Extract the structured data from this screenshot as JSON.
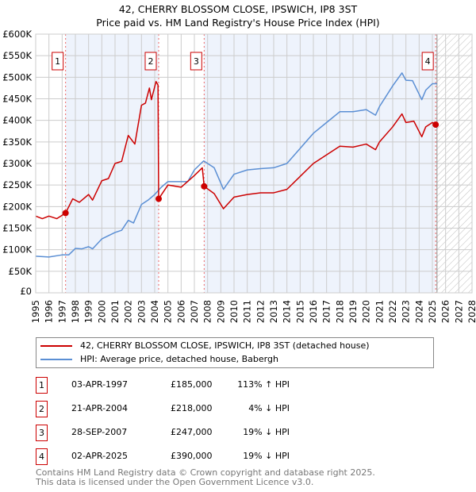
{
  "chart_data": {
    "type": "line",
    "title": "42, CHERRY BLOSSOM CLOSE, IPSWICH, IP8 3ST",
    "subtitle": "Price paid vs. HM Land Registry's House Price Index (HPI)",
    "xlim": [
      1995,
      2028
    ],
    "ylim": [
      0,
      600000
    ],
    "x_ticks": [
      "1995",
      "1996",
      "1997",
      "1998",
      "1999",
      "2000",
      "2001",
      "2002",
      "2003",
      "2004",
      "2005",
      "2006",
      "2007",
      "2008",
      "2009",
      "2010",
      "2011",
      "2012",
      "2013",
      "2014",
      "2015",
      "2016",
      "2017",
      "2018",
      "2019",
      "2020",
      "2021",
      "2022",
      "2023",
      "2024",
      "2025",
      "2026",
      "2027",
      "2028"
    ],
    "y_ticks": [
      "£0",
      "£50K",
      "£100K",
      "£150K",
      "£200K",
      "£250K",
      "£300K",
      "£350K",
      "£400K",
      "£450K",
      "£500K",
      "£550K",
      "£600K"
    ],
    "grid": true,
    "series": [
      {
        "name": "42, CHERRY BLOSSOM CLOSE, IPSWICH, IP8 3ST (detached house)",
        "color": "#cc0000",
        "points": [
          [
            1995,
            178000
          ],
          [
            1995.5,
            172000
          ],
          [
            1996,
            178000
          ],
          [
            1996.6,
            172000
          ],
          [
            1997.26,
            185000
          ],
          [
            1997.8,
            218000
          ],
          [
            1998.3,
            210000
          ],
          [
            1999,
            228000
          ],
          [
            1999.3,
            215000
          ],
          [
            2000,
            260000
          ],
          [
            2000.5,
            265000
          ],
          [
            2001,
            300000
          ],
          [
            2001.5,
            305000
          ],
          [
            2002,
            365000
          ],
          [
            2002.5,
            345000
          ],
          [
            2003,
            435000
          ],
          [
            2003.3,
            440000
          ],
          [
            2003.6,
            475000
          ],
          [
            2003.75,
            448000
          ],
          [
            2004.1,
            490000
          ],
          [
            2004.25,
            482000
          ],
          [
            2004.3,
            218000
          ],
          [
            2005,
            250000
          ],
          [
            2006,
            245000
          ],
          [
            2007,
            272000
          ],
          [
            2007.6,
            290000
          ],
          [
            2007.74,
            247000
          ],
          [
            2008.5,
            230000
          ],
          [
            2009.2,
            195000
          ],
          [
            2010,
            222000
          ],
          [
            2011,
            228000
          ],
          [
            2012,
            232000
          ],
          [
            2013,
            232000
          ],
          [
            2014,
            240000
          ],
          [
            2015,
            270000
          ],
          [
            2016,
            300000
          ],
          [
            2017,
            320000
          ],
          [
            2018,
            340000
          ],
          [
            2019,
            338000
          ],
          [
            2020,
            345000
          ],
          [
            2020.7,
            332000
          ],
          [
            2021,
            350000
          ],
          [
            2022,
            385000
          ],
          [
            2022.7,
            415000
          ],
          [
            2023,
            395000
          ],
          [
            2023.6,
            398000
          ],
          [
            2024.2,
            362000
          ],
          [
            2024.5,
            385000
          ],
          [
            2025,
            395000
          ],
          [
            2025.25,
            390000
          ],
          [
            2025.35,
            390000
          ]
        ]
      },
      {
        "name": "HPI: Average price, detached house, Babergh",
        "color": "#5b8fd4",
        "points": [
          [
            1995,
            85000
          ],
          [
            1996,
            83000
          ],
          [
            1997,
            88000
          ],
          [
            1997.5,
            88000
          ],
          [
            1998,
            103000
          ],
          [
            1998.5,
            102000
          ],
          [
            1999,
            107000
          ],
          [
            1999.3,
            102000
          ],
          [
            2000,
            125000
          ],
          [
            2001,
            140000
          ],
          [
            2001.5,
            145000
          ],
          [
            2002,
            168000
          ],
          [
            2002.4,
            162000
          ],
          [
            2003,
            205000
          ],
          [
            2003.5,
            215000
          ],
          [
            2004,
            228000
          ],
          [
            2004.5,
            245000
          ],
          [
            2005,
            258000
          ],
          [
            2006,
            258000
          ],
          [
            2006.5,
            258000
          ],
          [
            2007,
            285000
          ],
          [
            2007.7,
            306000
          ],
          [
            2008.5,
            290000
          ],
          [
            2009.2,
            240000
          ],
          [
            2010,
            275000
          ],
          [
            2011,
            285000
          ],
          [
            2012,
            288000
          ],
          [
            2013,
            290000
          ],
          [
            2014,
            300000
          ],
          [
            2015,
            335000
          ],
          [
            2016,
            370000
          ],
          [
            2017,
            395000
          ],
          [
            2018,
            420000
          ],
          [
            2019,
            420000
          ],
          [
            2020,
            425000
          ],
          [
            2020.7,
            412000
          ],
          [
            2021,
            432000
          ],
          [
            2022,
            480000
          ],
          [
            2022.7,
            510000
          ],
          [
            2023,
            493000
          ],
          [
            2023.5,
            492000
          ],
          [
            2024.2,
            448000
          ],
          [
            2024.5,
            470000
          ],
          [
            2025,
            485000
          ],
          [
            2025.35,
            485000
          ]
        ]
      }
    ],
    "sales": [
      {
        "label": "1",
        "date": "03-APR-1997",
        "x": 1997.26,
        "price": "£185,000",
        "value": 185000,
        "hpi": "113% ↑ HPI"
      },
      {
        "label": "2",
        "date": "21-APR-2004",
        "x": 2004.3,
        "price": "£218,000",
        "value": 218000,
        "hpi": "4% ↓ HPI"
      },
      {
        "label": "3",
        "date": "28-SEP-2007",
        "x": 2007.74,
        "price": "£247,000",
        "value": 247000,
        "hpi": "19% ↓ HPI"
      },
      {
        "label": "4",
        "date": "02-APR-2025",
        "x": 2025.25,
        "price": "£390,000",
        "value": 390000,
        "hpi": "19% ↓ HPI"
      }
    ],
    "data_end": 2025.35
  },
  "footer": {
    "line1": "Contains HM Land Registry data © Crown copyright and database right 2025.",
    "line2": "This data is licensed under the Open Government Licence v3.0."
  }
}
